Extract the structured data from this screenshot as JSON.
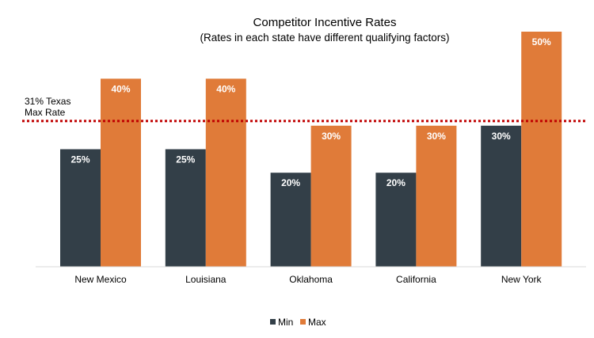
{
  "chart_data": {
    "type": "bar",
    "title": "Competitor Incentive Rates",
    "subtitle": "(Rates in each state have different qualifying factors)",
    "categories": [
      "New Mexico",
      "Louisiana",
      "Oklahoma",
      "California",
      "New York"
    ],
    "series": [
      {
        "name": "Min",
        "values": [
          25,
          25,
          20,
          20,
          30
        ],
        "labels": [
          "25%",
          "25%",
          "20%",
          "20%",
          "30%"
        ],
        "color": "#333f48"
      },
      {
        "name": "Max",
        "values": [
          40,
          40,
          30,
          30,
          50
        ],
        "labels": [
          "40%",
          "40%",
          "30%",
          "30%",
          "50%"
        ],
        "color": "#e07b39"
      }
    ],
    "reference_line": {
      "value": 31,
      "label_line1": "31% Texas",
      "label_line2": "Max Rate",
      "color": "#c00000",
      "style": "dotted"
    },
    "ylim": [
      0,
      50
    ],
    "grid": false,
    "legend": "bottom",
    "xlabel": "",
    "ylabel": ""
  }
}
